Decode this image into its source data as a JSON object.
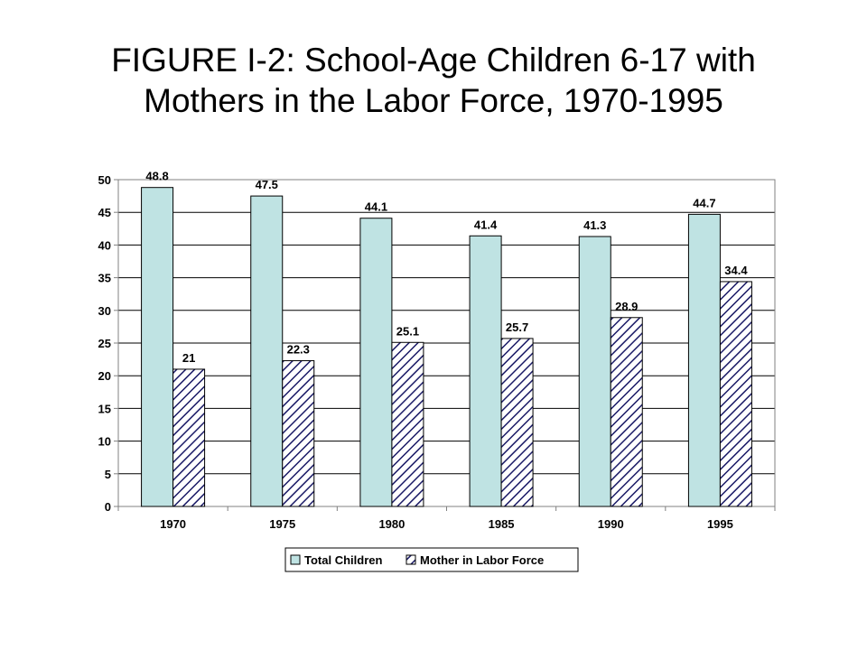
{
  "title": {
    "line1": "FIGURE I-2: School-Age Children 6-17 with",
    "line2": "Mothers in the Labor Force, 1970-1995"
  },
  "chart_data": {
    "type": "bar",
    "categories": [
      "1970",
      "1975",
      "1980",
      "1985",
      "1990",
      "1995"
    ],
    "series": [
      {
        "name": "Total Children",
        "values": [
          48.8,
          47.5,
          44.1,
          41.4,
          41.3,
          44.7
        ],
        "labels": [
          "48.8",
          "47.5",
          "44.1",
          "41.4",
          "41.3",
          "44.7"
        ],
        "color": "#bfe3e3",
        "pattern": "solid"
      },
      {
        "name": "Mother in Labor Force",
        "values": [
          21,
          22.3,
          25.1,
          25.7,
          28.9,
          34.4
        ],
        "labels": [
          "21",
          "22.3",
          "25.1",
          "25.7",
          "28.9",
          "34.4"
        ],
        "color": "#1a1a66",
        "pattern": "diagonal-hatch"
      }
    ],
    "yticks": [
      "0",
      "5",
      "10",
      "15",
      "20",
      "25",
      "30",
      "35",
      "40",
      "45",
      "50"
    ],
    "ylim": [
      0,
      50
    ],
    "grid": true,
    "legend": "bottom"
  }
}
